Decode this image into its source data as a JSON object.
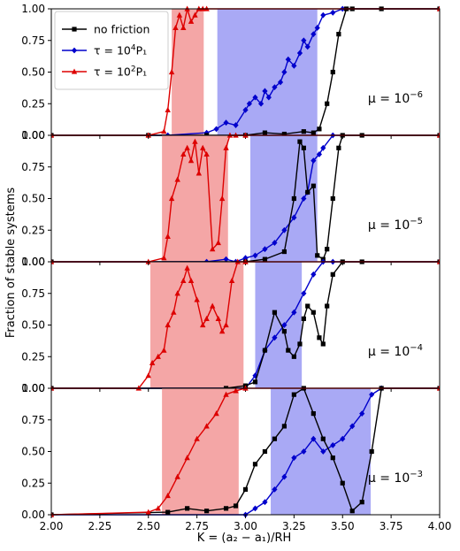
{
  "chart_data": {
    "type": "line",
    "xlabel": "K = (a₂ − a₁)/RΗ",
    "ylabel": "Fraction of stable systems",
    "xlim": [
      2.0,
      4.0
    ],
    "ylim": [
      0.0,
      1.0
    ],
    "x_ticks": [
      "2.00",
      "2.25",
      "2.50",
      "2.75",
      "3.00",
      "3.25",
      "3.50",
      "3.75",
      "4.00"
    ],
    "y_ticks": [
      "0.00",
      "0.25",
      "0.50",
      "0.75",
      "1.00"
    ],
    "grid": false,
    "legend": {
      "placement": "top-left of first panel",
      "entries": [
        {
          "label_main": "no friction",
          "label_sup": "",
          "label_tail": "",
          "color": "#000000",
          "marker": "square"
        },
        {
          "label_main": "τ = 10",
          "label_sup": "4",
          "label_tail": "P₁",
          "color": "#0000cc",
          "marker": "diamond"
        },
        {
          "label_main": "τ = 10",
          "label_sup": "2",
          "label_tail": "P₁",
          "color": "#dd0000",
          "marker": "triangle"
        }
      ]
    },
    "panels": [
      {
        "label_main": "μ = 10",
        "label_sup": "−6",
        "shaded": [
          {
            "series": "red",
            "from": 2.62,
            "to": 2.785,
            "color": "#f4a6a6"
          },
          {
            "series": "blue",
            "from": 2.855,
            "to": 3.37,
            "color": "#a9a9f5"
          }
        ],
        "series": [
          {
            "name": "no friction",
            "color": "#000000",
            "marker": "square",
            "x": [
              2.0,
              2.5,
              2.8,
              3.0,
              3.1,
              3.2,
              3.3,
              3.35,
              3.38,
              3.42,
              3.45,
              3.48,
              3.52,
              3.55,
              3.7,
              4.0
            ],
            "y": [
              0.0,
              0.0,
              0.0,
              0.0,
              0.02,
              0.01,
              0.03,
              0.02,
              0.05,
              0.25,
              0.5,
              0.8,
              1.0,
              1.0,
              1.0,
              1.0
            ]
          },
          {
            "name": "tau=1e4 P1",
            "color": "#0000cc",
            "marker": "diamond",
            "x": [
              2.0,
              2.6,
              2.8,
              2.85,
              2.9,
              2.95,
              3.0,
              3.02,
              3.05,
              3.08,
              3.1,
              3.12,
              3.15,
              3.18,
              3.2,
              3.22,
              3.25,
              3.28,
              3.3,
              3.32,
              3.35,
              3.37,
              3.4,
              3.45,
              3.5,
              4.0
            ],
            "y": [
              0.0,
              0.0,
              0.02,
              0.05,
              0.1,
              0.08,
              0.2,
              0.25,
              0.3,
              0.25,
              0.35,
              0.3,
              0.38,
              0.42,
              0.5,
              0.6,
              0.55,
              0.65,
              0.75,
              0.7,
              0.8,
              0.85,
              0.95,
              0.97,
              1.0,
              1.0
            ]
          },
          {
            "name": "tau=1e2 P1",
            "color": "#dd0000",
            "marker": "triangle",
            "x": [
              2.0,
              2.5,
              2.58,
              2.6,
              2.62,
              2.64,
              2.66,
              2.68,
              2.7,
              2.72,
              2.74,
              2.76,
              2.78,
              2.8,
              4.0
            ],
            "y": [
              0.0,
              0.0,
              0.03,
              0.2,
              0.5,
              0.85,
              0.95,
              0.85,
              1.0,
              0.9,
              0.95,
              1.0,
              1.0,
              1.0,
              1.0
            ]
          }
        ]
      },
      {
        "label_main": "μ = 10",
        "label_sup": "−5",
        "shaded": [
          {
            "series": "red",
            "from": 2.57,
            "to": 2.91,
            "color": "#f4a6a6"
          },
          {
            "series": "blue",
            "from": 3.025,
            "to": 3.37,
            "color": "#a9a9f5"
          }
        ],
        "series": [
          {
            "name": "no friction",
            "color": "#000000",
            "marker": "square",
            "x": [
              2.0,
              3.0,
              3.1,
              3.2,
              3.25,
              3.28,
              3.3,
              3.32,
              3.35,
              3.37,
              3.4,
              3.42,
              3.45,
              3.48,
              3.5,
              3.6,
              4.0
            ],
            "y": [
              0.0,
              0.0,
              0.02,
              0.08,
              0.5,
              0.95,
              0.9,
              0.55,
              0.6,
              0.05,
              0.02,
              0.1,
              0.5,
              0.9,
              1.0,
              1.0,
              1.0
            ]
          },
          {
            "name": "tau=1e4 P1",
            "color": "#0000cc",
            "marker": "diamond",
            "x": [
              2.0,
              2.8,
              2.9,
              2.95,
              3.0,
              3.05,
              3.1,
              3.15,
              3.2,
              3.25,
              3.3,
              3.32,
              3.35,
              3.38,
              3.4,
              3.45,
              4.0
            ],
            "y": [
              0.0,
              0.0,
              0.02,
              0.0,
              0.03,
              0.05,
              0.1,
              0.15,
              0.25,
              0.35,
              0.5,
              0.55,
              0.8,
              0.85,
              0.9,
              1.0,
              1.0
            ]
          },
          {
            "name": "tau=1e2 P1",
            "color": "#dd0000",
            "marker": "triangle",
            "x": [
              2.0,
              2.5,
              2.58,
              2.6,
              2.62,
              2.65,
              2.68,
              2.7,
              2.72,
              2.74,
              2.76,
              2.78,
              2.8,
              2.83,
              2.86,
              2.88,
              2.9,
              2.92,
              2.95,
              3.0,
              4.0
            ],
            "y": [
              0.0,
              0.0,
              0.03,
              0.2,
              0.5,
              0.65,
              0.85,
              0.9,
              0.8,
              0.95,
              0.7,
              0.9,
              0.85,
              0.1,
              0.15,
              0.5,
              0.9,
              1.0,
              1.0,
              1.0,
              1.0
            ]
          }
        ]
      },
      {
        "label_main": "μ = 10",
        "label_sup": "−4",
        "shaded": [
          {
            "series": "red",
            "from": 2.51,
            "to": 2.99,
            "color": "#f4a6a6"
          },
          {
            "series": "blue",
            "from": 3.05,
            "to": 3.29,
            "color": "#a9a9f5"
          }
        ],
        "series": [
          {
            "name": "no friction",
            "color": "#000000",
            "marker": "square",
            "x": [
              2.0,
              2.9,
              3.0,
              3.05,
              3.1,
              3.15,
              3.2,
              3.22,
              3.25,
              3.28,
              3.3,
              3.32,
              3.35,
              3.38,
              3.4,
              3.42,
              3.45,
              3.5,
              3.6,
              4.0
            ],
            "y": [
              0.0,
              0.0,
              0.02,
              0.05,
              0.3,
              0.6,
              0.45,
              0.3,
              0.25,
              0.35,
              0.55,
              0.65,
              0.6,
              0.4,
              0.35,
              0.65,
              0.9,
              1.0,
              1.0,
              1.0
            ]
          },
          {
            "name": "tau=1e4 P1",
            "color": "#0000cc",
            "marker": "diamond",
            "x": [
              2.0,
              3.0,
              3.05,
              3.1,
              3.15,
              3.2,
              3.25,
              3.3,
              3.35,
              3.4,
              3.45,
              4.0
            ],
            "y": [
              0.0,
              0.0,
              0.1,
              0.3,
              0.4,
              0.5,
              0.6,
              0.75,
              0.9,
              1.0,
              1.0,
              1.0
            ]
          },
          {
            "name": "tau=1e2 P1",
            "color": "#dd0000",
            "marker": "triangle",
            "x": [
              2.0,
              2.45,
              2.5,
              2.52,
              2.55,
              2.58,
              2.6,
              2.63,
              2.65,
              2.68,
              2.7,
              2.72,
              2.75,
              2.78,
              2.8,
              2.83,
              2.86,
              2.88,
              2.9,
              2.93,
              2.96,
              3.0,
              4.0
            ],
            "y": [
              0.0,
              0.0,
              0.1,
              0.2,
              0.25,
              0.3,
              0.5,
              0.6,
              0.75,
              0.85,
              0.95,
              0.85,
              0.7,
              0.5,
              0.55,
              0.65,
              0.55,
              0.45,
              0.5,
              0.85,
              1.0,
              1.0,
              1.0
            ]
          }
        ]
      },
      {
        "label_main": "μ = 10",
        "label_sup": "−3",
        "shaded": [
          {
            "series": "red",
            "from": 2.57,
            "to": 2.965,
            "color": "#f4a6a6"
          },
          {
            "series": "blue",
            "from": 3.13,
            "to": 3.645,
            "color": "#a9a9f5"
          }
        ],
        "series": [
          {
            "name": "no friction",
            "color": "#000000",
            "marker": "square",
            "x": [
              2.0,
              2.6,
              2.7,
              2.8,
              2.9,
              2.95,
              3.0,
              3.05,
              3.1,
              3.15,
              3.2,
              3.25,
              3.3,
              3.35,
              3.4,
              3.45,
              3.5,
              3.55,
              3.6,
              3.65,
              3.7,
              4.0
            ],
            "y": [
              0.0,
              0.02,
              0.05,
              0.03,
              0.05,
              0.07,
              0.2,
              0.4,
              0.5,
              0.6,
              0.7,
              0.95,
              1.0,
              0.8,
              0.6,
              0.45,
              0.25,
              0.03,
              0.1,
              0.5,
              1.0,
              1.0
            ]
          },
          {
            "name": "tau=1e4 P1",
            "color": "#0000cc",
            "marker": "diamond",
            "x": [
              2.0,
              3.0,
              3.05,
              3.1,
              3.15,
              3.2,
              3.25,
              3.3,
              3.35,
              3.4,
              3.45,
              3.5,
              3.55,
              3.6,
              3.65,
              3.7,
              4.0
            ],
            "y": [
              0.0,
              0.0,
              0.05,
              0.1,
              0.2,
              0.3,
              0.45,
              0.5,
              0.6,
              0.5,
              0.55,
              0.6,
              0.7,
              0.8,
              0.95,
              1.0,
              1.0
            ]
          },
          {
            "name": "tau=1e2 P1",
            "color": "#dd0000",
            "marker": "triangle",
            "x": [
              2.0,
              2.5,
              2.55,
              2.6,
              2.65,
              2.7,
              2.75,
              2.8,
              2.85,
              2.9,
              2.95,
              3.0,
              4.0
            ],
            "y": [
              0.0,
              0.02,
              0.05,
              0.15,
              0.3,
              0.45,
              0.6,
              0.7,
              0.8,
              0.95,
              0.98,
              1.0,
              1.0
            ]
          }
        ]
      }
    ]
  }
}
